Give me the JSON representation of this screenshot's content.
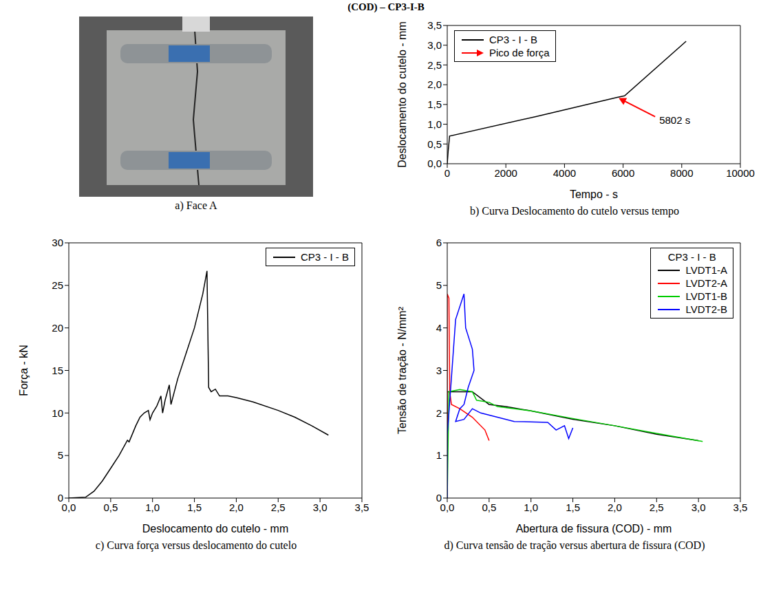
{
  "header": "(COD) – CP3-I-B",
  "photo_caption": "a) Face A",
  "chart_data": [
    {
      "type": "line",
      "title": "b) Curva Deslocamento do cutelo versus tempo",
      "x_label": "Tempo - s",
      "y_label": "Deslocamento do cutelo - mm",
      "xlim": [
        0,
        10000
      ],
      "xticks": [
        0,
        2000,
        4000,
        6000,
        8000,
        10000
      ],
      "ylim": [
        0,
        3.5
      ],
      "yticks": [
        {
          "value": 0,
          "label": "0,0"
        },
        {
          "value": 0.5,
          "label": "0,5"
        },
        {
          "value": 1,
          "label": "1,0"
        },
        {
          "value": 1.5,
          "label": "1,5"
        },
        {
          "value": 2,
          "label": "2,0"
        },
        {
          "value": 2.5,
          "label": "2,5"
        },
        {
          "value": 3,
          "label": "3,0"
        },
        {
          "value": 3.5,
          "label": "3,5"
        }
      ],
      "legend": "upper left",
      "series": [
        {
          "name": "CP3 - I - B",
          "color": "#000000",
          "x": [
            0,
            30,
            80,
            3000,
            5802,
            6050,
            8150
          ],
          "values": [
            0,
            0.3,
            0.7,
            1.19,
            1.68,
            1.72,
            3.1
          ]
        }
      ],
      "annotations": [
        {
          "name": "Pico de força",
          "text": "5802 s",
          "x": 5802,
          "y": 1.68,
          "color": "#ff0000"
        }
      ]
    },
    {
      "type": "line",
      "title": "c) Curva força versus deslocamento do cutelo",
      "x_label": "Deslocamento do cutelo - mm",
      "y_label": "Força - kN",
      "xlim": [
        0,
        3.5
      ],
      "xticks": [
        {
          "value": 0,
          "label": "0,0"
        },
        {
          "value": 0.5,
          "label": "0,5"
        },
        {
          "value": 1,
          "label": "1,0"
        },
        {
          "value": 1.5,
          "label": "1,5"
        },
        {
          "value": 2,
          "label": "2,0"
        },
        {
          "value": 2.5,
          "label": "2,5"
        },
        {
          "value": 3,
          "label": "3,0"
        },
        {
          "value": 3.5,
          "label": "3,5"
        }
      ],
      "ylim": [
        0,
        30
      ],
      "yticks": [
        0,
        5,
        10,
        15,
        20,
        25,
        30
      ],
      "legend": "upper right",
      "series": [
        {
          "name": "CP3 - I - B",
          "color": "#000000",
          "x": [
            0,
            0.2,
            0.3,
            0.4,
            0.5,
            0.6,
            0.7,
            0.72,
            0.8,
            0.85,
            0.9,
            0.95,
            0.97,
            1.0,
            1.05,
            1.1,
            1.12,
            1.15,
            1.2,
            1.22,
            1.3,
            1.4,
            1.5,
            1.6,
            1.65,
            1.67,
            1.7,
            1.75,
            1.8,
            1.9,
            2.0,
            2.2,
            2.5,
            2.7,
            2.9,
            3.1
          ],
          "values": [
            0,
            0.1,
            0.8,
            2,
            3.5,
            5,
            6.8,
            6.6,
            8.5,
            9.5,
            10,
            10.3,
            9.2,
            10,
            10.8,
            12,
            10,
            11.5,
            13.3,
            11,
            14,
            17,
            20,
            24,
            26.7,
            13,
            12.5,
            12.8,
            12,
            12,
            11.8,
            11.3,
            10.3,
            9.5,
            8.5,
            7.4
          ]
        }
      ]
    },
    {
      "type": "line",
      "title": "d) Curva tensão de tração versus abertura de fissura (COD)",
      "x_label": "Abertura de fissura (COD) - mm",
      "y_label": "Tensão de tração - N/mm²",
      "xlim": [
        0,
        3.5
      ],
      "xticks": [
        {
          "value": 0,
          "label": "0,0"
        },
        {
          "value": 0.5,
          "label": "0,5"
        },
        {
          "value": 1,
          "label": "1,0"
        },
        {
          "value": 1.5,
          "label": "1,5"
        },
        {
          "value": 2,
          "label": "2,0"
        },
        {
          "value": 2.5,
          "label": "2,5"
        },
        {
          "value": 3,
          "label": "3,0"
        },
        {
          "value": 3.5,
          "label": "3,5"
        }
      ],
      "ylim": [
        0,
        6
      ],
      "yticks": [
        0,
        1,
        2,
        3,
        4,
        5,
        6
      ],
      "legend": "upper right",
      "legend_title": "CP3 - I - B",
      "series": [
        {
          "name": "LVDT1-A",
          "color": "#000000",
          "x": [
            0,
            0,
            0.1,
            0.3,
            0.5,
            0.7,
            1,
            1.5,
            2,
            2.5,
            3
          ],
          "values": [
            0,
            2.5,
            2.5,
            2.5,
            2.2,
            2.15,
            2.05,
            1.85,
            1.7,
            1.5,
            1.35
          ]
        },
        {
          "name": "LVDT2-A",
          "color": "#ff0000",
          "x": [
            0,
            0,
            0.02,
            0.03,
            0.05,
            0.15,
            0.3,
            0.45,
            0.5
          ],
          "values": [
            0,
            4.8,
            4.7,
            2.5,
            2.2,
            2.1,
            1.9,
            1.6,
            1.35
          ]
        },
        {
          "name": "LVDT1-B",
          "color": "#00cc00",
          "x": [
            0,
            0.02,
            0.15,
            0.3,
            0.35,
            0.5,
            0.6,
            1,
            1.5,
            2,
            2.5,
            3.05
          ],
          "values": [
            0,
            2.5,
            2.55,
            2.5,
            2.3,
            2.25,
            2.15,
            2.05,
            1.87,
            1.7,
            1.52,
            1.33
          ]
        },
        {
          "name": "LVDT2-B",
          "color": "#0000ff",
          "x": [
            0,
            0,
            0.02,
            0.1,
            0.2,
            0.22,
            0.3,
            0.32,
            0.25,
            0.2,
            0.15,
            0.1,
            0.2,
            0.3,
            0.4,
            0.6,
            0.8,
            1.2,
            1.3,
            1.4,
            1.45,
            1.5
          ],
          "values": [
            0,
            1.5,
            2,
            4.2,
            4.8,
            4,
            3.5,
            3,
            2.6,
            2.2,
            2.1,
            1.8,
            1.85,
            2.1,
            2,
            1.9,
            1.8,
            1.78,
            1.6,
            1.7,
            1.4,
            1.65
          ]
        }
      ]
    }
  ]
}
